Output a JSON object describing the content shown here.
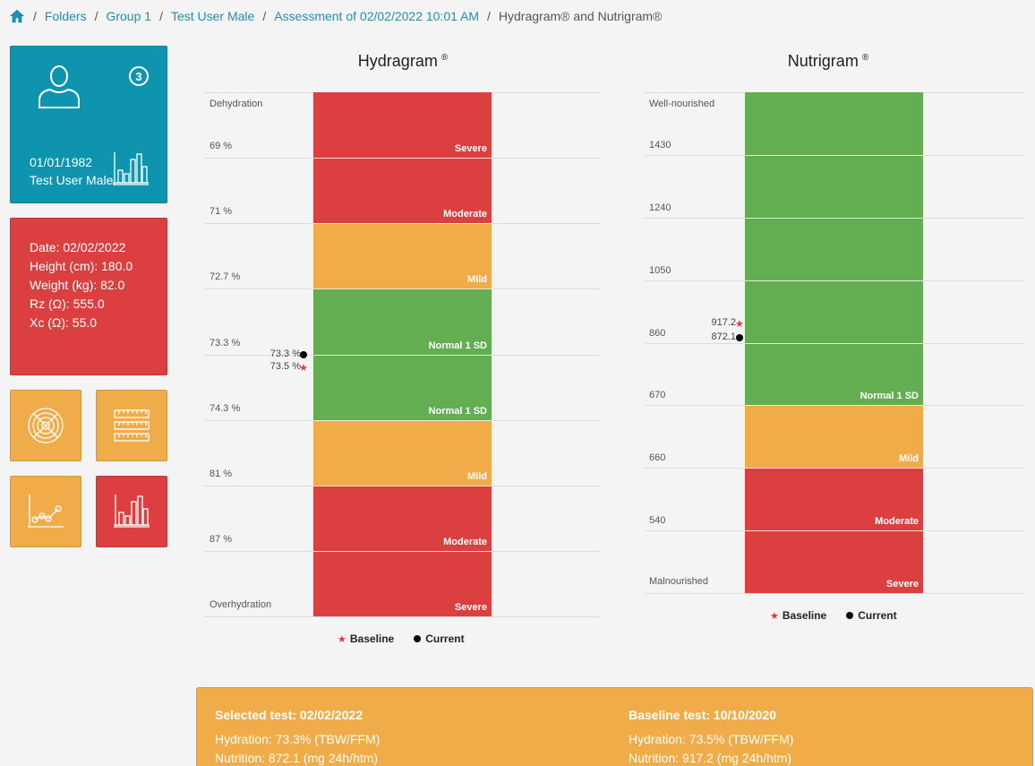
{
  "breadcrumb": {
    "items": [
      "Folders",
      "Group 1",
      "Test User Male",
      "Assessment of 02/02/2022 10:01 AM"
    ],
    "current": "Hydragram® and Nutrigram®"
  },
  "user_tile": {
    "badge": "3",
    "dob": "01/01/1982",
    "name": "Test User Male"
  },
  "info_tile": {
    "lines": [
      "Date: 02/02/2022",
      "Height (cm): 180.0",
      "Weight (kg): 82.0",
      "Rz (Ω): 555.0",
      "Xc (Ω): 55.0"
    ]
  },
  "hydragram": {
    "title": "Hydragram",
    "reg": "®",
    "top_label": "Dehydration",
    "bottom_label": "Overhydration",
    "tick_labels": [
      "69 %",
      "71 %",
      "72.7 %",
      "73.3 %",
      "74.3 %",
      "81 %",
      "87 %"
    ],
    "segments": [
      {
        "label": "Severe",
        "color": "#dc3f3f"
      },
      {
        "label": "Moderate",
        "color": "#dc3f3f"
      },
      {
        "label": "Mild",
        "color": "#f0ac48"
      },
      {
        "label": "Normal 1 SD",
        "color": "#62ae51"
      },
      {
        "label": "Normal 1 SD",
        "color": "#62ae51"
      },
      {
        "label": "Mild",
        "color": "#f0ac48"
      },
      {
        "label": "Moderate",
        "color": "#dc3f3f"
      },
      {
        "label": "Severe",
        "color": "#dc3f3f"
      }
    ],
    "current": {
      "label": "73.3 %",
      "value": 73.3
    },
    "baseline": {
      "label": "73.5 %",
      "value": 73.5
    }
  },
  "nutrigram": {
    "title": "Nutrigram",
    "reg": "®",
    "top_label": "Well-nourished",
    "bottom_label": "Malnourished",
    "tick_labels": [
      "1430",
      "1240",
      "1050",
      "860",
      "670",
      "660",
      "540"
    ],
    "segments": [
      {
        "label": "Normal 1 SD",
        "color": "#62ae51",
        "span": 5
      },
      {
        "label": "Mild",
        "color": "#f0ac48",
        "span": 1
      },
      {
        "label": "Moderate",
        "color": "#dc3f3f",
        "span": 1
      },
      {
        "label": "Severe",
        "color": "#dc3f3f",
        "span": 1
      }
    ],
    "baseline": {
      "label": "917.2",
      "value": 917.2
    },
    "current": {
      "label": "872.1",
      "value": 872.1
    }
  },
  "legend": {
    "baseline": "Baseline",
    "current": "Current"
  },
  "summary": {
    "selected": {
      "heading": "Selected test: 02/02/2022",
      "hydration": "Hydration: 73.3% (TBW/FFM)",
      "nutrition": "Nutrition: 872.1 (mg 24h/htm)"
    },
    "baseline": {
      "heading": "Baseline test: 10/10/2020",
      "hydration": "Hydration: 73.5% (TBW/FFM)",
      "nutrition": "Nutrition: 917.2 (mg 24h/htm)"
    }
  },
  "colors": {
    "teal": "#0e94ae",
    "red": "#dc3f3f",
    "orange": "#f0ac48",
    "green": "#62ae51",
    "link": "#1e8fb0"
  },
  "icons": [
    "home-icon",
    "user-icon",
    "bar-chart-icon",
    "target-icon",
    "ruler-icon",
    "line-chart-icon",
    "bar-chart-icon"
  ]
}
